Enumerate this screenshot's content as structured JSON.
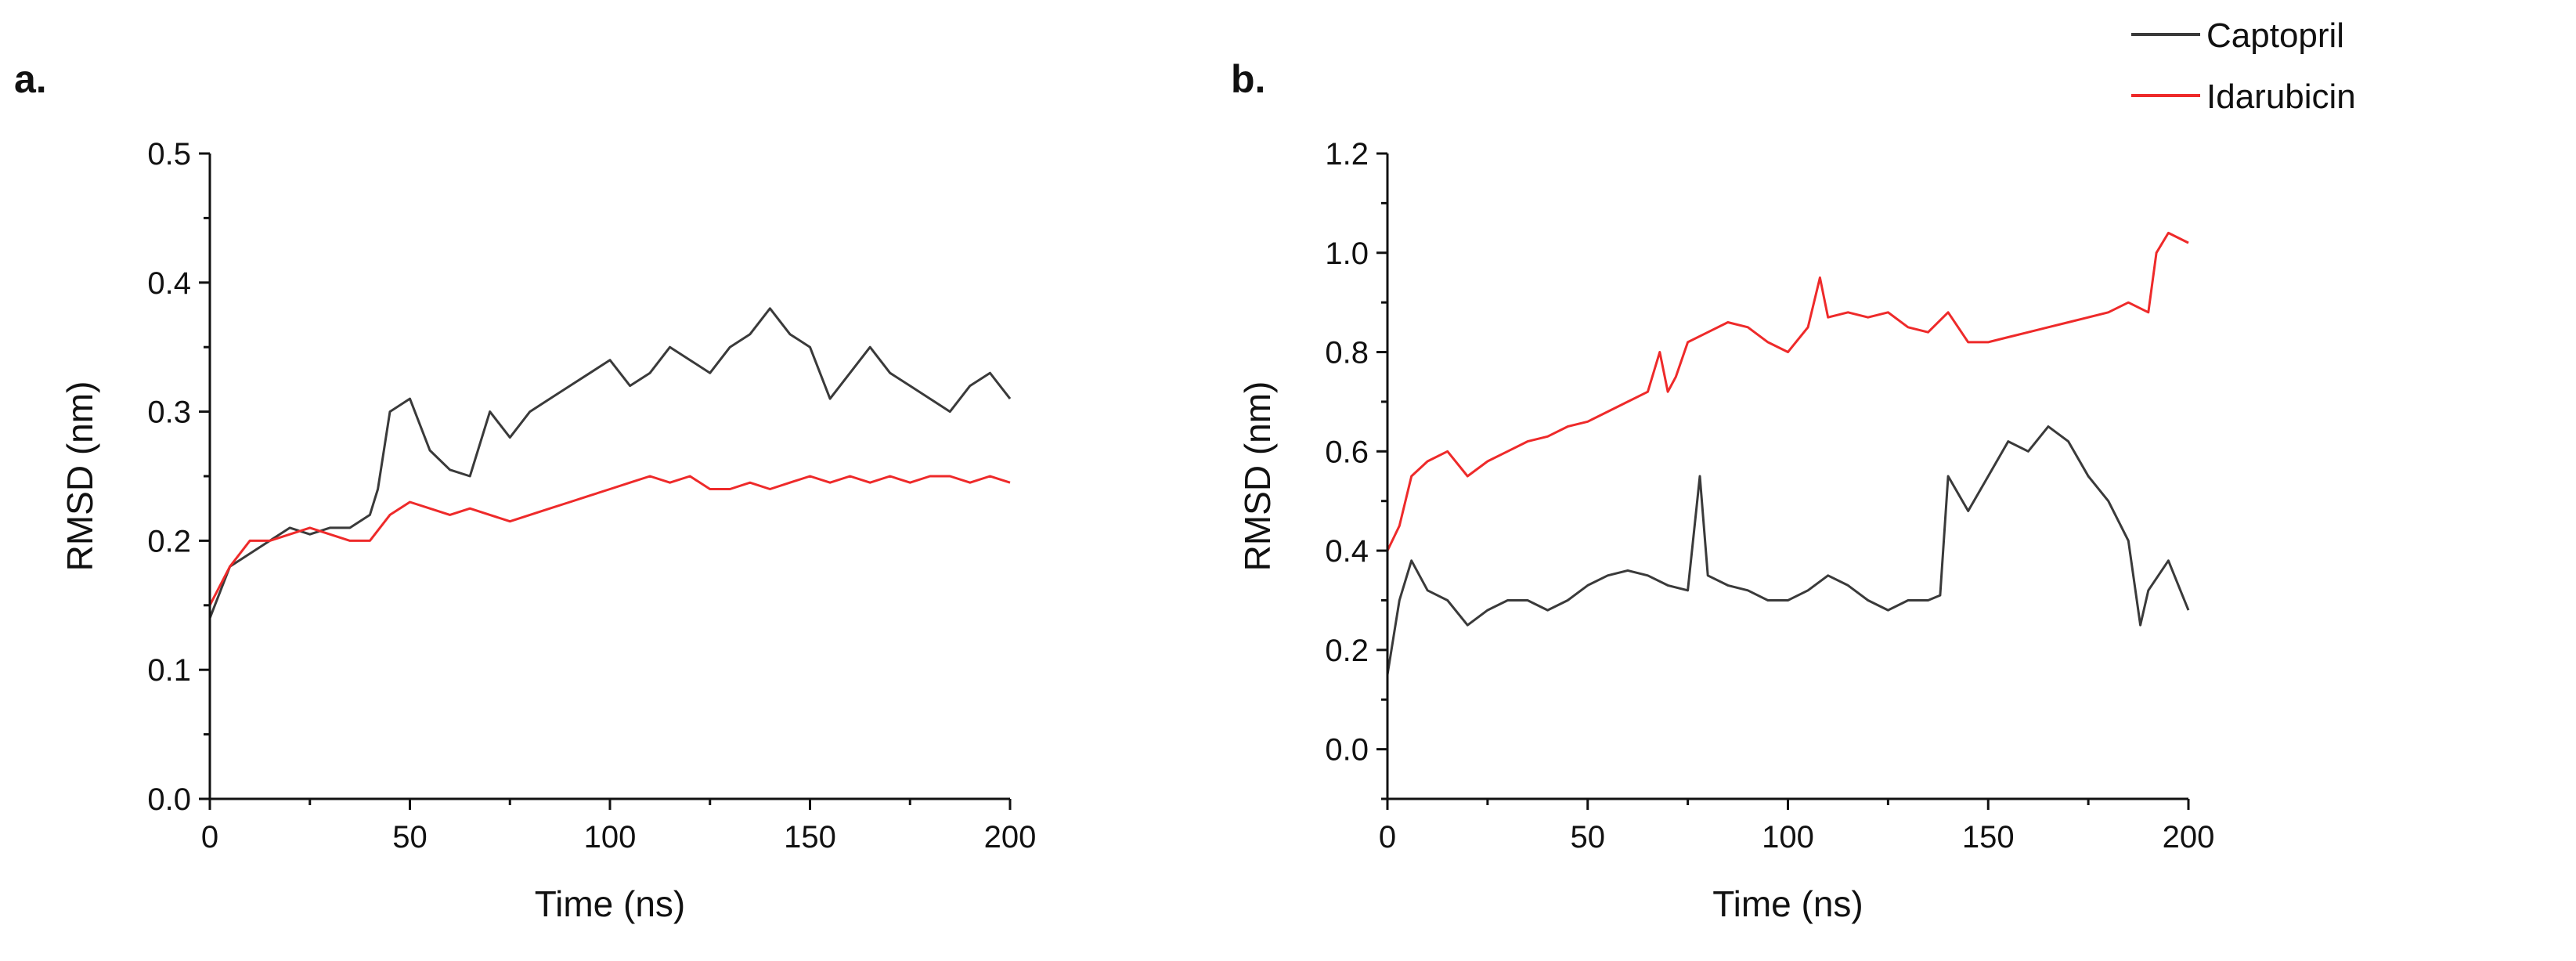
{
  "legend": {
    "position": "top-right",
    "entries": [
      {
        "name": "Captopril",
        "color": "#3a3a3a"
      },
      {
        "name": "Idarubicin",
        "color": "#ee2a2a"
      }
    ]
  },
  "chart_data": [
    {
      "panel": "a.",
      "type": "line",
      "xlabel": "Time (ns)",
      "ylabel": "RMSD (nm)",
      "xlim": [
        0,
        200
      ],
      "ylim": [
        0,
        0.5
      ],
      "xticks": [
        0,
        50,
        100,
        150,
        200
      ],
      "yticks": [
        0.0,
        0.1,
        0.2,
        0.3,
        0.4,
        0.5
      ],
      "ytick_labels": [
        "0.0",
        "0.1",
        "0.2",
        "0.3",
        "0.4",
        "0.5"
      ],
      "series": [
        {
          "name": "Captopril",
          "color": "#3a3a3a",
          "x": [
            0,
            5,
            10,
            15,
            20,
            25,
            30,
            35,
            40,
            42,
            45,
            50,
            55,
            60,
            65,
            70,
            75,
            80,
            85,
            90,
            95,
            100,
            105,
            110,
            115,
            120,
            125,
            130,
            135,
            140,
            145,
            150,
            155,
            160,
            165,
            170,
            175,
            180,
            185,
            190,
            195,
            200
          ],
          "y": [
            0.14,
            0.18,
            0.19,
            0.2,
            0.21,
            0.205,
            0.21,
            0.21,
            0.22,
            0.24,
            0.3,
            0.31,
            0.27,
            0.255,
            0.25,
            0.3,
            0.28,
            0.3,
            0.31,
            0.32,
            0.33,
            0.34,
            0.32,
            0.33,
            0.35,
            0.34,
            0.33,
            0.35,
            0.36,
            0.38,
            0.36,
            0.35,
            0.31,
            0.33,
            0.35,
            0.33,
            0.32,
            0.31,
            0.3,
            0.32,
            0.33,
            0.31
          ]
        },
        {
          "name": "Idarubicin",
          "color": "#ee2a2a",
          "x": [
            0,
            5,
            10,
            15,
            20,
            25,
            30,
            35,
            40,
            45,
            50,
            55,
            60,
            65,
            70,
            75,
            80,
            85,
            90,
            95,
            100,
            105,
            110,
            115,
            120,
            125,
            130,
            135,
            140,
            145,
            150,
            155,
            160,
            165,
            170,
            175,
            180,
            185,
            190,
            195,
            200
          ],
          "y": [
            0.15,
            0.18,
            0.2,
            0.2,
            0.205,
            0.21,
            0.205,
            0.2,
            0.2,
            0.22,
            0.23,
            0.225,
            0.22,
            0.225,
            0.22,
            0.215,
            0.22,
            0.225,
            0.23,
            0.235,
            0.24,
            0.245,
            0.25,
            0.245,
            0.25,
            0.24,
            0.24,
            0.245,
            0.24,
            0.245,
            0.25,
            0.245,
            0.25,
            0.245,
            0.25,
            0.245,
            0.25,
            0.25,
            0.245,
            0.25,
            0.245
          ]
        }
      ]
    },
    {
      "panel": "b.",
      "type": "line",
      "xlabel": "Time (ns)",
      "ylabel": "RMSD (nm)",
      "xlim": [
        0,
        200
      ],
      "ylim": [
        -0.1,
        1.2
      ],
      "xticks": [
        0,
        50,
        100,
        150,
        200
      ],
      "yticks": [
        0.0,
        0.2,
        0.4,
        0.6,
        0.8,
        1.0,
        1.2
      ],
      "ytick_labels": [
        "0.0",
        "0.2",
        "0.4",
        "0.6",
        "0.8",
        "1.0",
        "1.2"
      ],
      "series": [
        {
          "name": "Captopril",
          "color": "#3a3a3a",
          "x": [
            0,
            3,
            6,
            10,
            15,
            20,
            25,
            30,
            35,
            40,
            45,
            50,
            55,
            60,
            65,
            70,
            75,
            78,
            80,
            85,
            90,
            95,
            100,
            105,
            110,
            115,
            120,
            125,
            130,
            135,
            138,
            140,
            145,
            150,
            155,
            160,
            165,
            170,
            175,
            180,
            185,
            188,
            190,
            195,
            200
          ],
          "y": [
            0.15,
            0.3,
            0.38,
            0.32,
            0.3,
            0.25,
            0.28,
            0.3,
            0.3,
            0.28,
            0.3,
            0.33,
            0.35,
            0.36,
            0.35,
            0.33,
            0.32,
            0.55,
            0.35,
            0.33,
            0.32,
            0.3,
            0.3,
            0.32,
            0.35,
            0.33,
            0.3,
            0.28,
            0.3,
            0.3,
            0.31,
            0.55,
            0.48,
            0.55,
            0.62,
            0.6,
            0.65,
            0.62,
            0.55,
            0.5,
            0.42,
            0.25,
            0.32,
            0.38,
            0.28
          ]
        },
        {
          "name": "Idarubicin",
          "color": "#ee2a2a",
          "x": [
            0,
            3,
            6,
            10,
            15,
            20,
            25,
            30,
            35,
            40,
            45,
            50,
            55,
            60,
            65,
            68,
            70,
            72,
            75,
            80,
            85,
            90,
            95,
            100,
            105,
            108,
            110,
            115,
            120,
            125,
            130,
            135,
            140,
            145,
            150,
            155,
            160,
            165,
            170,
            175,
            180,
            185,
            190,
            192,
            195,
            200
          ],
          "y": [
            0.4,
            0.45,
            0.55,
            0.58,
            0.6,
            0.55,
            0.58,
            0.6,
            0.62,
            0.63,
            0.65,
            0.66,
            0.68,
            0.7,
            0.72,
            0.8,
            0.72,
            0.75,
            0.82,
            0.84,
            0.86,
            0.85,
            0.82,
            0.8,
            0.85,
            0.95,
            0.87,
            0.88,
            0.87,
            0.88,
            0.85,
            0.84,
            0.88,
            0.82,
            0.82,
            0.83,
            0.84,
            0.85,
            0.86,
            0.87,
            0.88,
            0.9,
            0.88,
            1.0,
            1.04,
            1.02
          ]
        }
      ]
    }
  ]
}
